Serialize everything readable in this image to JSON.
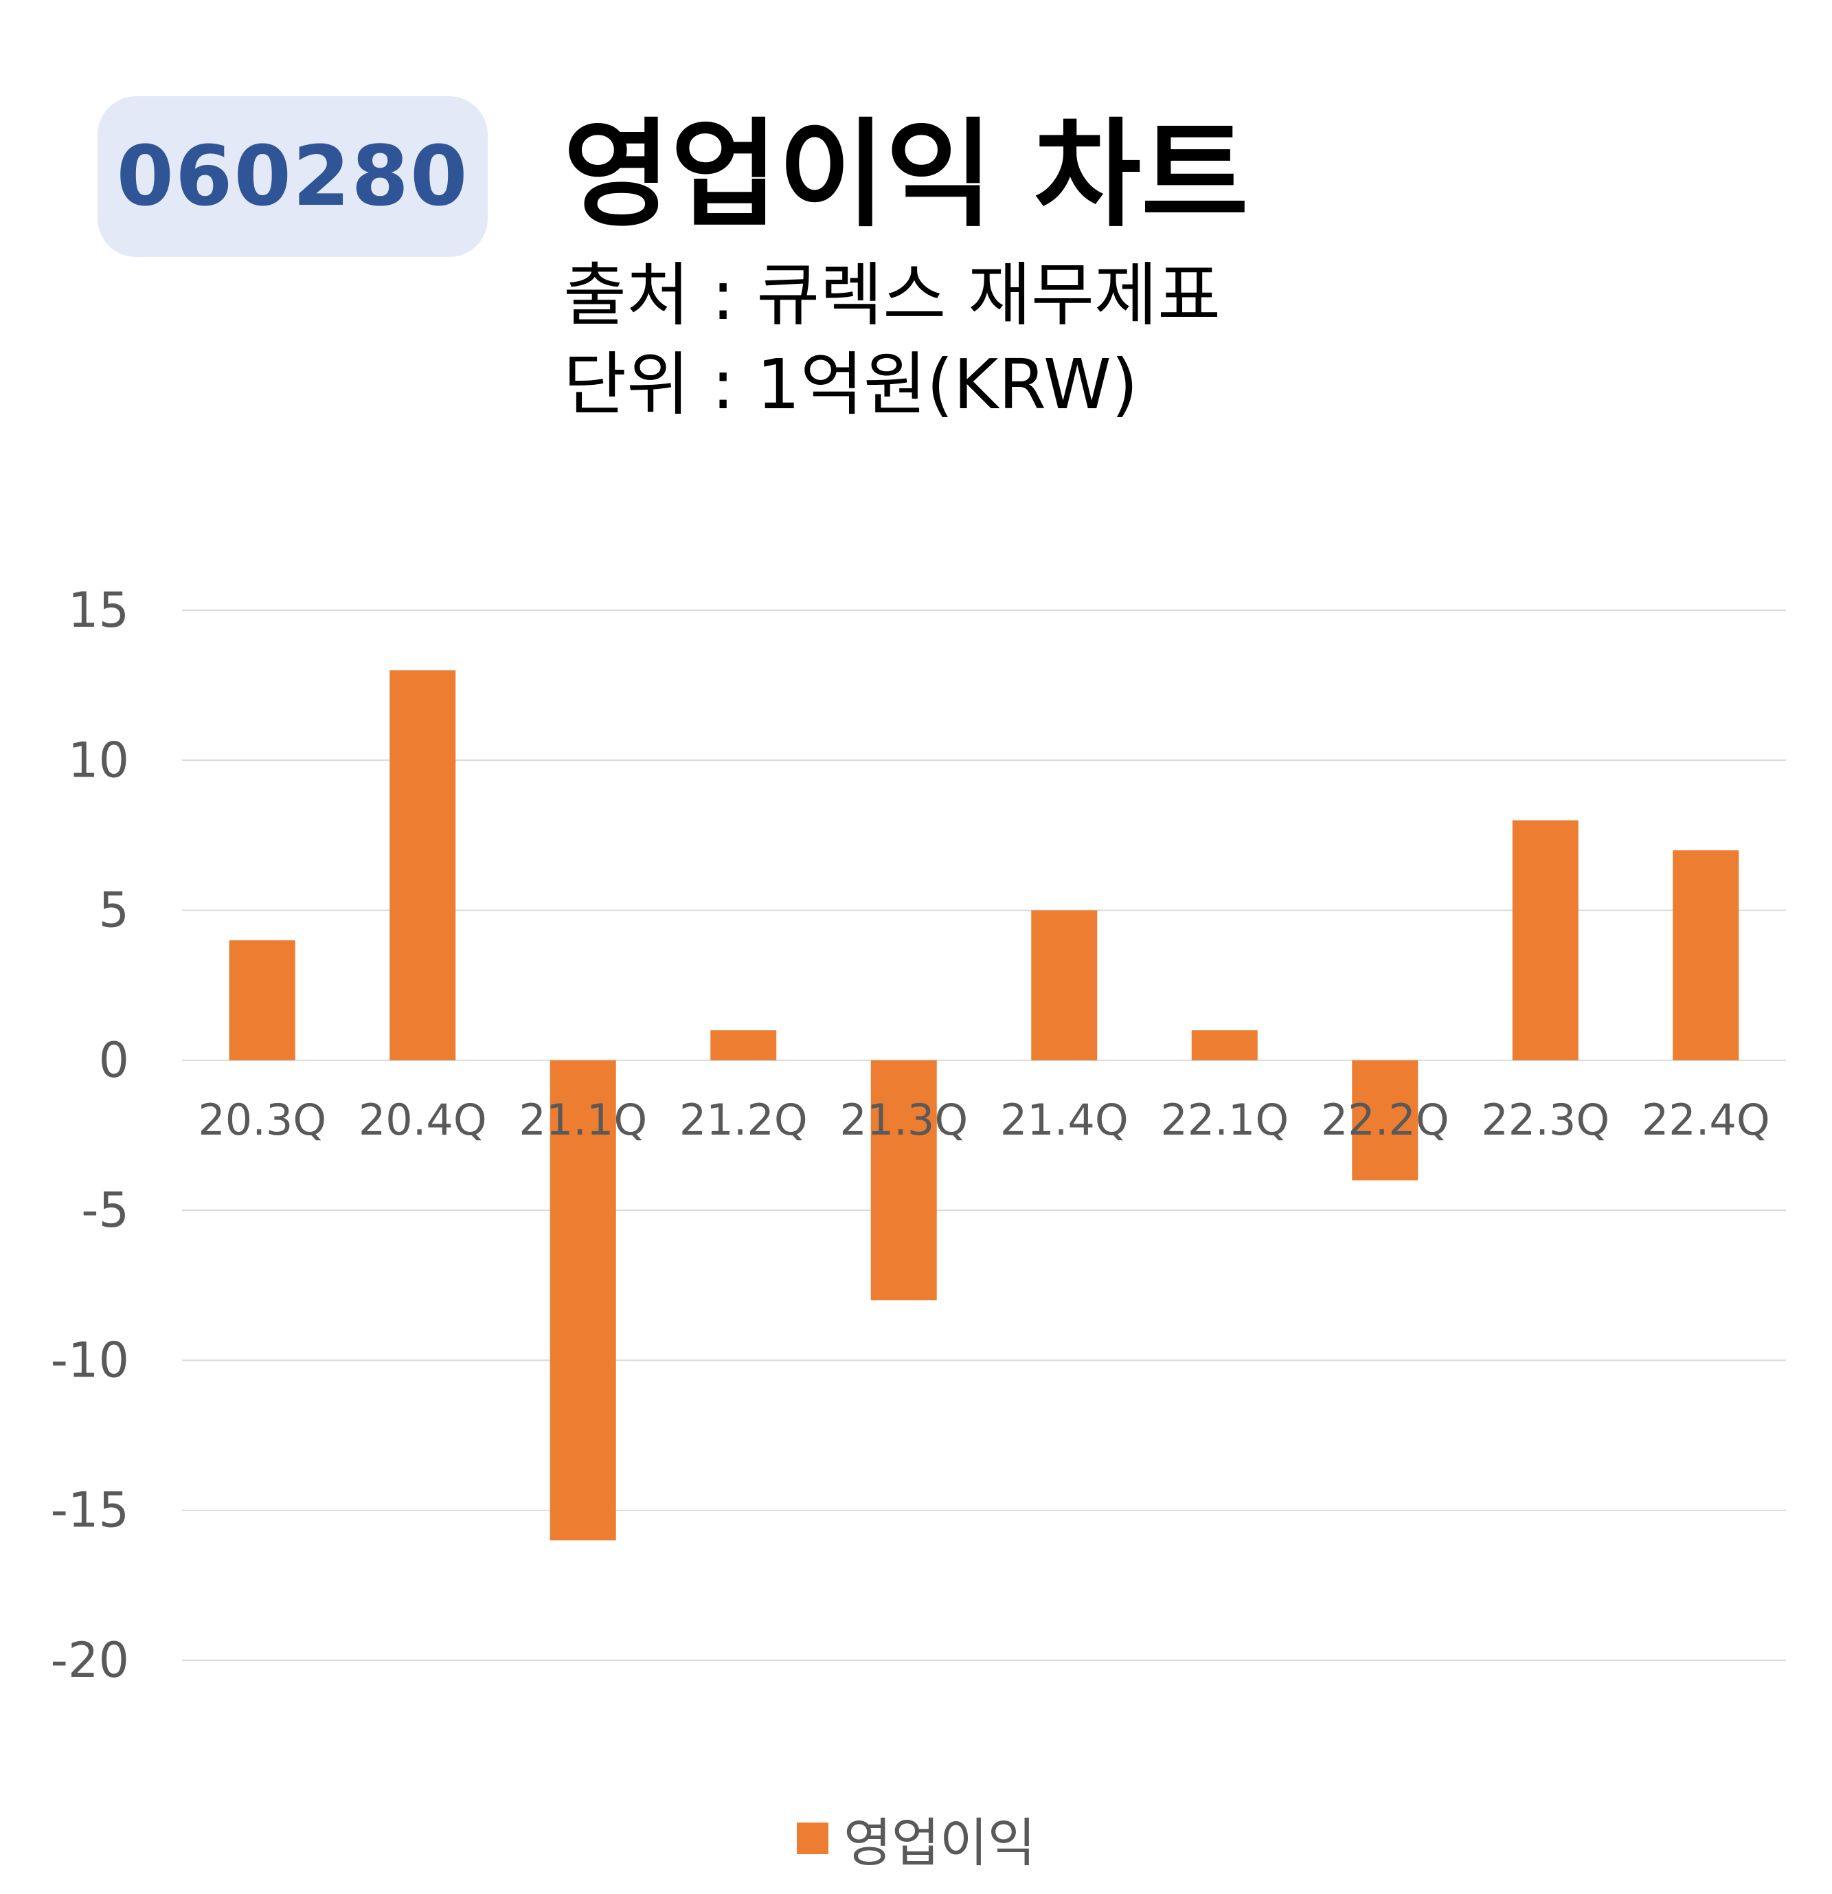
{
  "header": {
    "ticker": "060280",
    "title": "영업이익 차트",
    "source": "출처 : 큐렉스 재무제표",
    "unit": "단위 : 1억원(KRW)"
  },
  "colors": {
    "bar": "#ed7d31",
    "grid": "#d9d9d9",
    "axis_text": "#595959",
    "badge_bg": "#e3e9f6",
    "badge_text": "#2f5597"
  },
  "chart_data": {
    "type": "bar",
    "title": "영업이익 차트",
    "categories": [
      "20.3Q",
      "20.4Q",
      "21.1Q",
      "21.2Q",
      "21.3Q",
      "21.4Q",
      "22.1Q",
      "22.2Q",
      "22.3Q",
      "22.4Q"
    ],
    "series": [
      {
        "name": "영업이익",
        "values": [
          4,
          13,
          -16,
          1,
          -8,
          5,
          1,
          -4,
          8,
          7
        ]
      }
    ],
    "ylim": [
      -20,
      15
    ],
    "yticks": [
      15,
      10,
      5,
      0,
      -5,
      -10,
      -15,
      -20
    ],
    "grid": true,
    "legend": "bottom"
  }
}
